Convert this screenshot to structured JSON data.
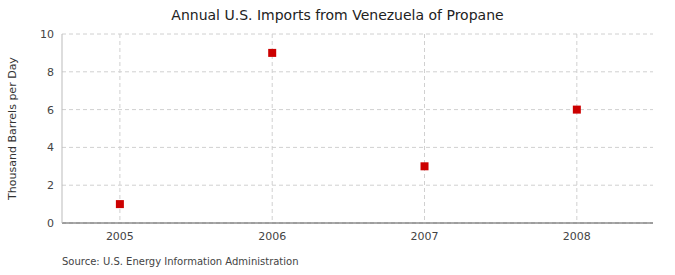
{
  "chart_data": {
    "type": "scatter",
    "title": "Annual U.S. Imports from Venezuela of Propane",
    "ylabel": "Thousand Barrels per Day",
    "source": "Source: U.S. Energy Information Administration",
    "x": [
      2005,
      2006,
      2007,
      2008
    ],
    "values": [
      1,
      9,
      3,
      6
    ],
    "xlim": [
      2004.62,
      2008.5
    ],
    "ylim": [
      0,
      10
    ],
    "xticks": [
      2005,
      2006,
      2007,
      2008
    ],
    "yticks": [
      0,
      2,
      4,
      6,
      8,
      10
    ],
    "color": "#cc0000",
    "marker": "square",
    "grid": true
  }
}
